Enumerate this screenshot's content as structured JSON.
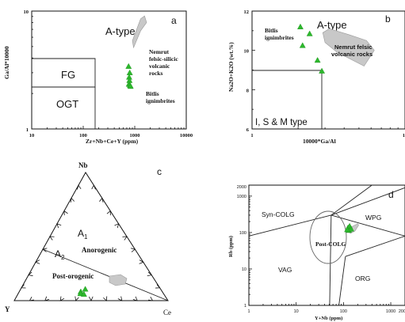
{
  "chart_data": [
    {
      "panel": "a",
      "type": "scatter",
      "xlabel": "Zr+Nb+Ce+Y (ppm)",
      "ylabel": "Ga/Al*10000",
      "x_scale": "log",
      "y_scale": "log",
      "xlim": [
        10,
        10000
      ],
      "ylim": [
        1,
        10
      ],
      "x_ticks": [
        "10",
        "100",
        "1000",
        "10000"
      ],
      "y_ticks": [
        "1",
        "10"
      ],
      "fields": [
        "A-type",
        "FG",
        "OGT"
      ],
      "annotations": [
        "Nemrut felsic-silicic volcanic rocks",
        "Bitlis ignimbrites"
      ],
      "nemrut_field": [
        [
          950,
          4.9
        ],
        [
          1300,
          6.8
        ],
        [
          1700,
          8.0
        ],
        [
          1550,
          9.1
        ],
        [
          1300,
          8.6
        ],
        [
          900,
          5.6
        ]
      ],
      "series": [
        {
          "name": "Bitlis ignimbrites",
          "marker": "triangle",
          "color": "#2db82d",
          "points": [
            [
              760,
              3.4
            ],
            [
              800,
              3.0
            ],
            [
              780,
              2.75
            ],
            [
              790,
              2.58
            ],
            [
              770,
              2.4
            ],
            [
              810,
              2.35
            ],
            [
              830,
              2.3
            ]
          ]
        }
      ]
    },
    {
      "panel": "b",
      "type": "scatter",
      "xlabel": "10000*Ga/Al",
      "ylabel": "Na2O+K2O (wt.%)",
      "x_scale": "log",
      "xlim": [
        1,
        10
      ],
      "ylim": [
        6,
        12
      ],
      "x_ticks": [
        "1",
        "1"
      ],
      "y_ticks": [
        "6",
        "8",
        "10",
        "12"
      ],
      "fields": [
        "A-type",
        "I, S & M type"
      ],
      "annotations": [
        "Nemrut felsic volcanic rocks",
        "Bitlis ignimbrites"
      ],
      "nemrut_field": [
        [
          2.9,
          10.9
        ],
        [
          3.2,
          11.1
        ],
        [
          4.3,
          10.8
        ],
        [
          5.6,
          10.5
        ],
        [
          6.3,
          10.0
        ],
        [
          5.4,
          9.2
        ],
        [
          3.6,
          9.9
        ],
        [
          3.0,
          10.4
        ]
      ],
      "series": [
        {
          "name": "Bitlis ignimbrites",
          "marker": "triangle",
          "color": "#2db82d",
          "points": [
            [
              2.07,
              11.2
            ],
            [
              2.38,
              10.85
            ],
            [
              2.14,
              10.25
            ],
            [
              2.68,
              9.5
            ],
            [
              2.86,
              8.95
            ]
          ]
        }
      ]
    },
    {
      "panel": "c",
      "type": "scatter",
      "plot": "ternary",
      "vertices": [
        "Nb",
        "Y",
        "Ce"
      ],
      "fields": [
        "A1",
        "A2",
        "Anorogenic",
        "Post-orogenic"
      ],
      "series": [
        {
          "name": "Bitlis ignimbrites",
          "marker": "triangle",
          "color": "#2db82d",
          "points": [
            [
              0.07,
              0.53,
              0.4
            ],
            [
              0.09,
              0.49,
              0.42
            ],
            [
              0.055,
              0.54,
              0.405
            ],
            [
              0.05,
              0.52,
              0.43
            ]
          ]
        }
      ]
    },
    {
      "panel": "d",
      "type": "scatter",
      "xlabel": "Y+Nb (ppm)",
      "ylabel": "Rb (ppm)",
      "x_scale": "log",
      "y_scale": "log",
      "xlim": [
        1,
        2000
      ],
      "ylim": [
        1,
        2000
      ],
      "x_ticks": [
        "1",
        "10",
        "100",
        "1000",
        "2000"
      ],
      "y_ticks": [
        "1",
        "10",
        "100",
        "1000",
        "2000"
      ],
      "fields": [
        "Syn-COLG",
        "WPG",
        "Post-COLG",
        "VAG",
        "ORG"
      ],
      "nemrut_field": [
        [
          120,
          115
        ],
        [
          150,
          145
        ],
        [
          200,
          175
        ],
        [
          210,
          160
        ],
        [
          175,
          110
        ],
        [
          140,
          95
        ]
      ],
      "series": [
        {
          "name": "Bitlis ignimbrites",
          "marker": "triangle",
          "color": "#2db82d",
          "points": [
            [
              125,
              135
            ],
            [
              135,
              150
            ],
            [
              130,
              115
            ],
            [
              145,
              125
            ],
            [
              120,
              120
            ]
          ]
        }
      ]
    }
  ],
  "labels": {
    "a": {
      "panel": "a",
      "atype": "A-type",
      "fg": "FG",
      "ogt": "OGT",
      "nem1": "Nemrut",
      "nem2": "felsic-silicic",
      "nem3": "volcanic",
      "nem4": "rocks",
      "bit1": "Bitlis",
      "bit2": "ignimbrites",
      "xlabel": "Zr+Nb+Ce+Y (ppm)",
      "ylabel": "Ga/Al*10000",
      "xt": [
        "10",
        "100",
        "1000",
        "10000"
      ],
      "yt": [
        "1",
        "10"
      ]
    },
    "b": {
      "panel": "b",
      "atype": "A-type",
      "ism": "I, S & M type",
      "nem1": "Nemrut felsic",
      "nem2": "volcanic rocks",
      "bit1": "Bitlis",
      "bit2": "ignimbrites",
      "xlabel": "10000*Ga/Al",
      "ylabel": "Na2O+K2O (wt.%)",
      "xt": [
        "1",
        "1"
      ],
      "yt": [
        "6",
        "8",
        "10",
        "12"
      ]
    },
    "c": {
      "panel": "c",
      "nb": "Nb",
      "y": "Y",
      "ce": "Ce",
      "a1": "A",
      "a1sub": "1",
      "a2": "A",
      "a2sub": "2",
      "anorogenic": "Anorogenic",
      "postorogenic": "Post-orogenic"
    },
    "d": {
      "panel": "d",
      "syn": "Syn-COLG",
      "wpg": "WPG",
      "post": "Post-COLG",
      "vag": "VAG",
      "org": "ORG",
      "xlabel": "Y+Nb (ppm)",
      "ylabel": "Rb (ppm)",
      "xt": [
        "1",
        "10",
        "100",
        "1000",
        "2000"
      ],
      "yt": [
        "1",
        "10",
        "100",
        "1000",
        "2000"
      ]
    }
  },
  "colors": {
    "bitlis": "#2db82d",
    "nemrut_fill": "#c8c8c8",
    "nemrut_stroke": "#9a9a9a"
  }
}
